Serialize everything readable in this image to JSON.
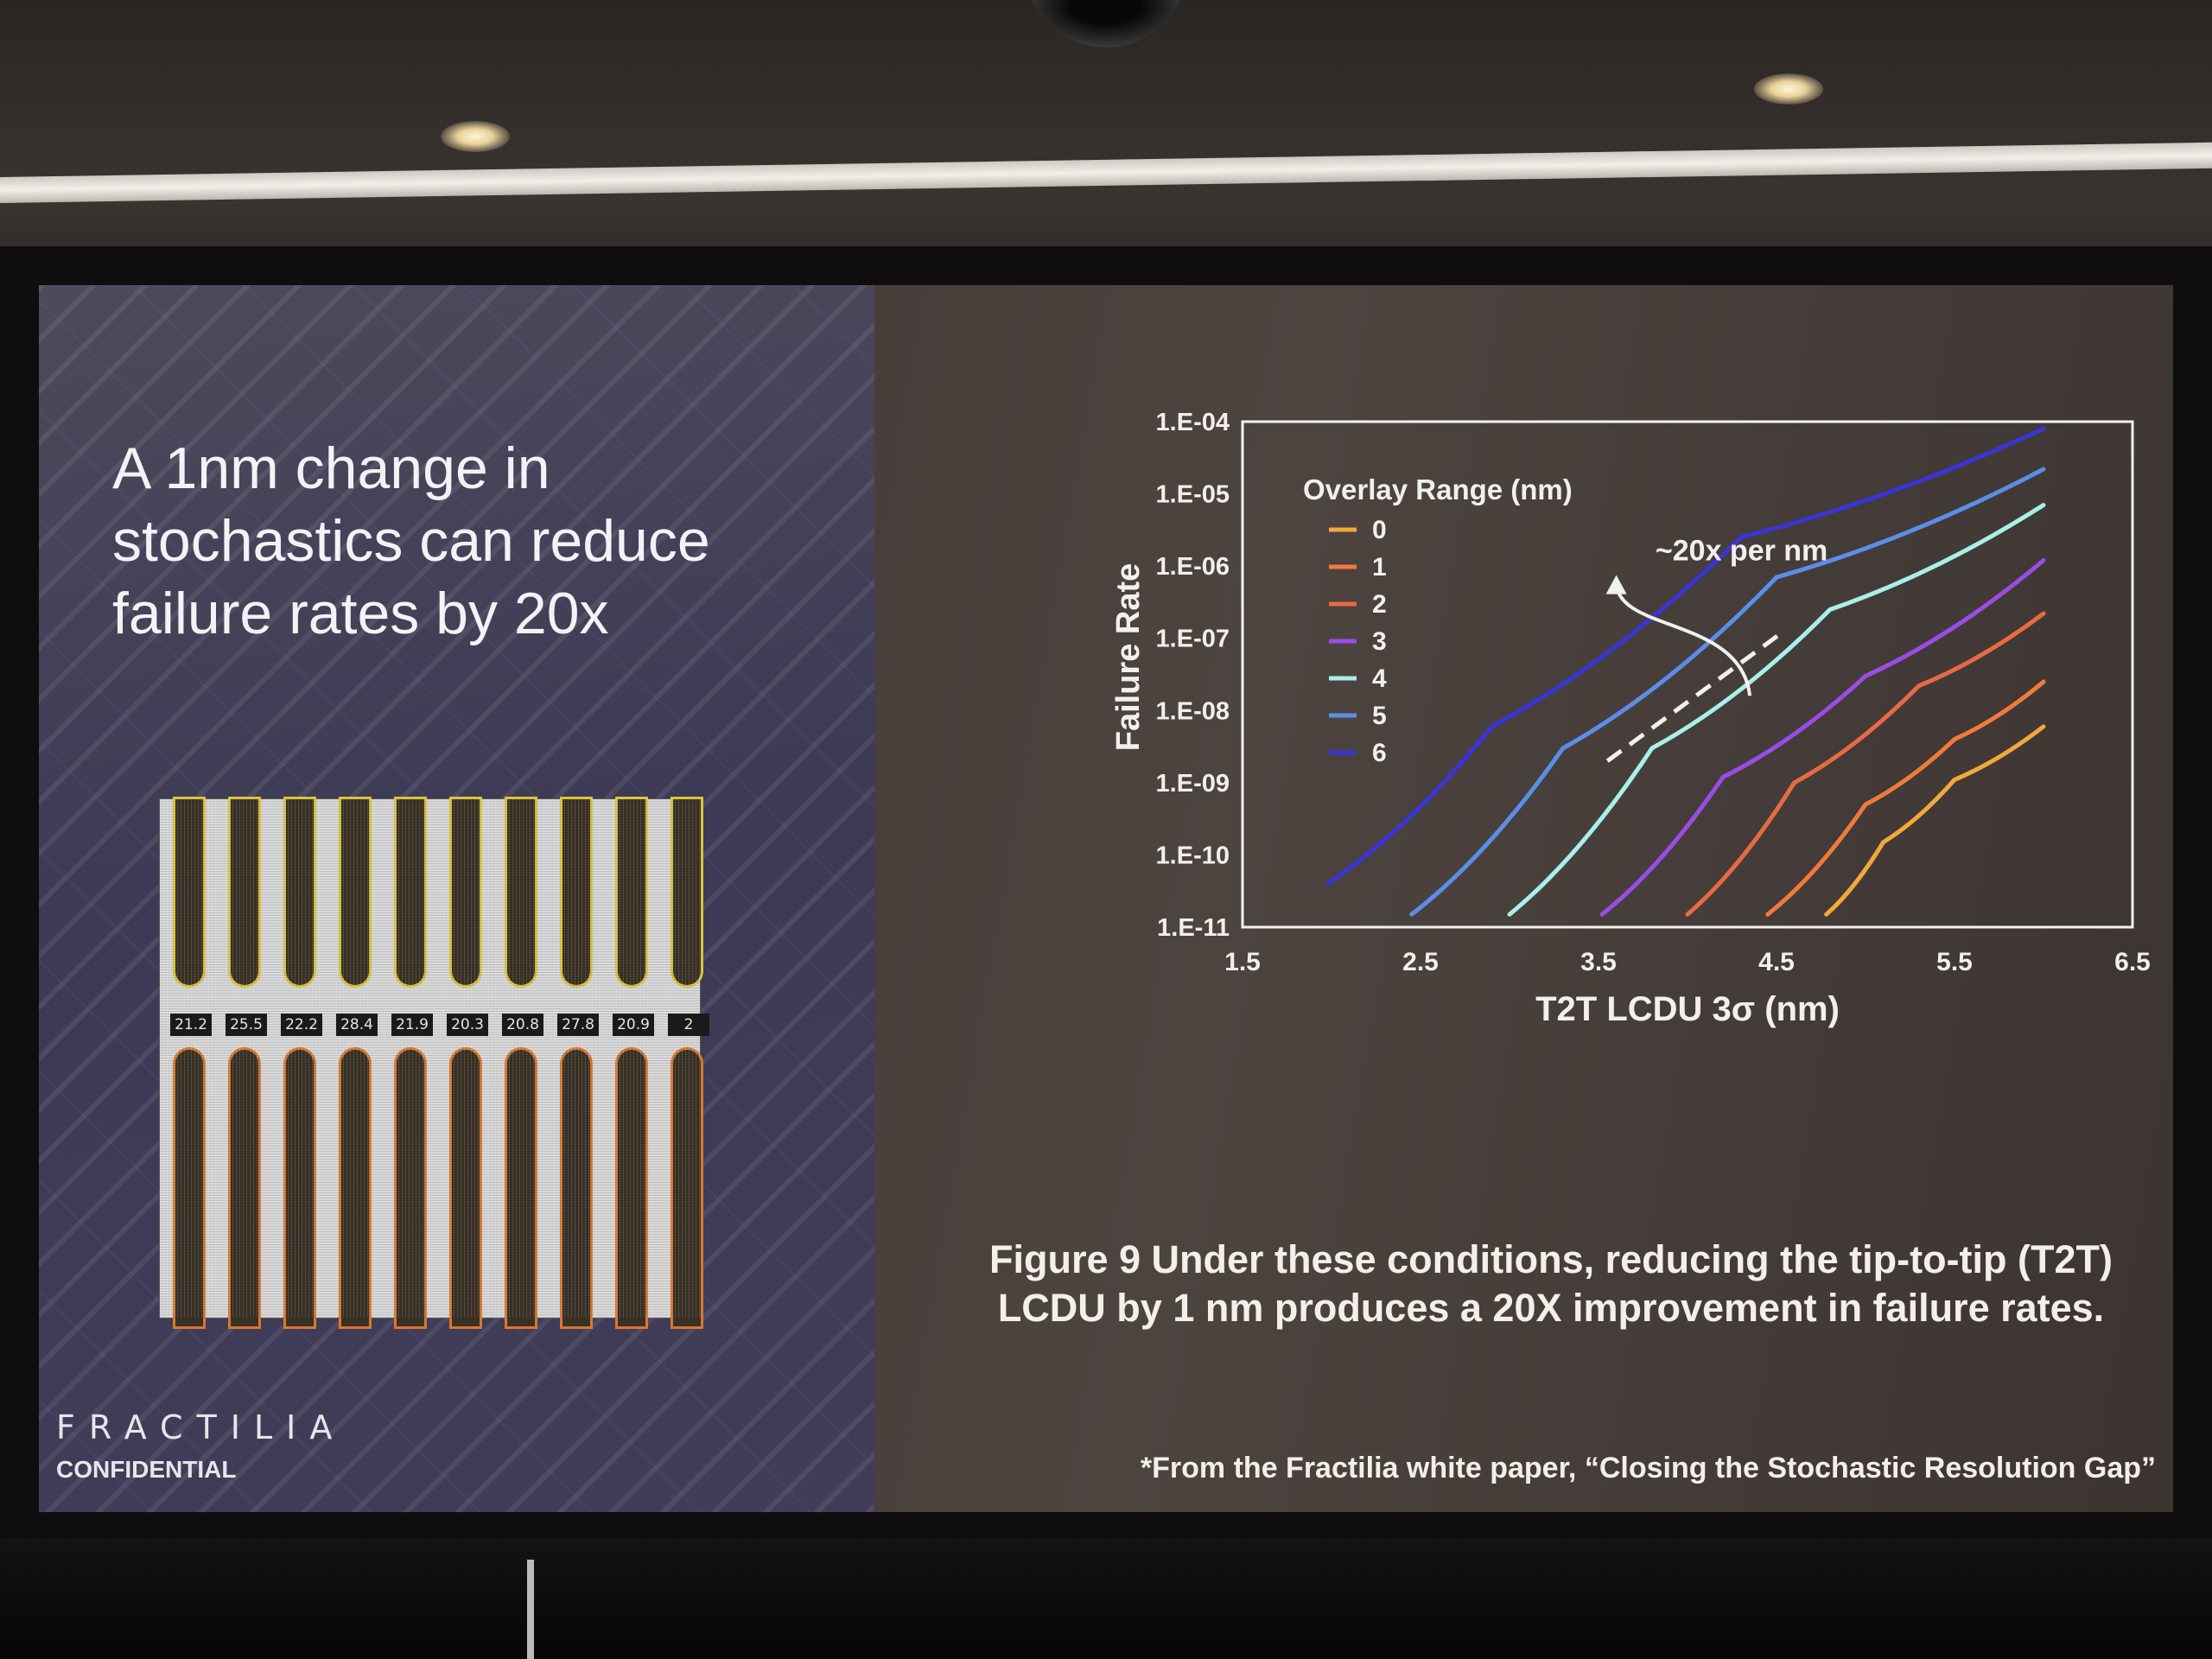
{
  "slide": {
    "headline": "A 1nm change in stochastics can reduce failure rates by 20x",
    "brand": "FRACTILIA",
    "confidential": "CONFIDENTIAL",
    "caption": "Figure 9  Under these conditions, reducing the tip-to-tip (T2T) LCDU by 1 nm produces a 20X improvement in failure rates.",
    "source_note": "*From the Fractilia white paper, “Closing the Stochastic Resolution Gap”",
    "sem_labels": [
      "21.2",
      "25.5",
      "22.2",
      "28.4",
      "21.9",
      "20.3",
      "20.8",
      "27.8",
      "20.9",
      "2"
    ]
  },
  "chart_data": {
    "type": "line",
    "title": "",
    "xlabel": "T2T LCDU 3σ (nm)",
    "ylabel": "Failure Rate",
    "x_ticks": [
      "1.5",
      "2.5",
      "3.5",
      "4.5",
      "5.5",
      "6.5"
    ],
    "y_ticks": [
      "1.E-04",
      "1.E-05",
      "1.E-06",
      "1.E-07",
      "1.E-08",
      "1.E-09",
      "1.E-10",
      "1.E-11"
    ],
    "xlim": [
      1.5,
      6.5
    ],
    "ylim": [
      1e-11,
      0.0001
    ],
    "y_scale": "log",
    "legend_title": "Overlay Range (nm)",
    "legend_position": "top-left",
    "annotation": "~20x per nm",
    "series": [
      {
        "name": "0",
        "color": "#f2a93a",
        "x": [
          4.78,
          5.1,
          5.5,
          6.0
        ],
        "y": [
          1.5e-11,
          1.5e-10,
          1.1e-09,
          6e-09
        ]
      },
      {
        "name": "1",
        "color": "#f07a3a",
        "x": [
          4.45,
          5.0,
          5.5,
          6.0
        ],
        "y": [
          1.5e-11,
          5e-10,
          4e-09,
          2.5e-08
        ]
      },
      {
        "name": "2",
        "color": "#e86a45",
        "x": [
          4.0,
          4.6,
          5.3,
          6.0
        ],
        "y": [
          1.5e-11,
          1e-09,
          2.2e-08,
          2.2e-07
        ]
      },
      {
        "name": "3",
        "color": "#9a4ce8",
        "x": [
          3.52,
          4.2,
          5.0,
          6.0
        ],
        "y": [
          1.5e-11,
          1.2e-09,
          3e-08,
          1.2e-06
        ]
      },
      {
        "name": "4",
        "color": "#a8f0e8",
        "x": [
          3.0,
          3.8,
          4.8,
          6.0
        ],
        "y": [
          1.5e-11,
          3e-09,
          2.5e-07,
          7e-06
        ]
      },
      {
        "name": "5",
        "color": "#5a8ee8",
        "x": [
          2.45,
          3.3,
          4.5,
          6.0
        ],
        "y": [
          1.5e-11,
          3e-09,
          7e-07,
          2.2e-05
        ]
      },
      {
        "name": "6",
        "color": "#3a34d8",
        "x": [
          1.98,
          2.9,
          4.3,
          6.0
        ],
        "y": [
          4e-11,
          6e-09,
          2.5e-06,
          8e-05
        ]
      }
    ]
  }
}
